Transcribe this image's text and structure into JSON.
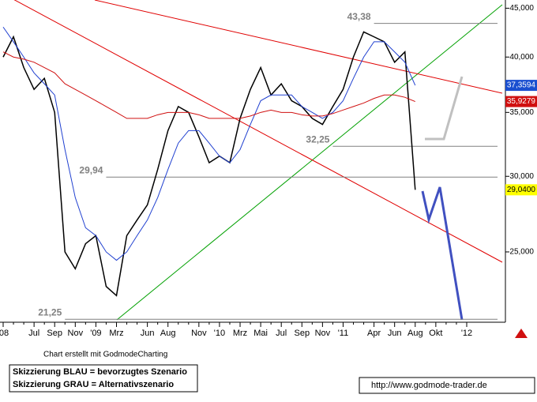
{
  "chart_data": {
    "type": "line",
    "log_scale": true,
    "categories": [
      "'08",
      null,
      null,
      "Jul",
      null,
      "Sep",
      null,
      "Nov",
      null,
      "'09",
      null,
      "Mrz",
      null,
      null,
      "Jun",
      null,
      "Aug",
      null,
      null,
      "Nov",
      null,
      "'10",
      null,
      "Mrz",
      null,
      "Mai",
      null,
      "Jul",
      null,
      "Sep",
      null,
      "Nov",
      null,
      "'11",
      null,
      null,
      "Apr",
      null,
      "Jun",
      null,
      "Aug",
      null,
      "Okt",
      null,
      null,
      "'12"
    ],
    "series": [
      {
        "color": "#000000",
        "values": [
          40000,
          42000,
          39000,
          37000,
          38000,
          35000,
          25000,
          24000,
          25500,
          26000,
          23000,
          22500,
          26000,
          27000,
          28000,
          30500,
          33500,
          35500,
          35000,
          33000,
          31000,
          31500,
          31000,
          34500,
          37000,
          39000,
          36500,
          37500,
          36000,
          35500,
          34500,
          34000,
          35500,
          37000,
          40000,
          42500,
          42000,
          41500,
          39500,
          40500,
          29040,
          null,
          null,
          null,
          null,
          null
        ]
      },
      {
        "color": "#2040d0",
        "values": [
          43000,
          41500,
          40000,
          38500,
          37500,
          36500,
          32000,
          28500,
          26500,
          26000,
          25000,
          24500,
          25000,
          26000,
          27000,
          28500,
          30500,
          32500,
          33500,
          33500,
          32500,
          31500,
          31000,
          32000,
          34000,
          36000,
          36500,
          36500,
          36500,
          35500,
          35000,
          34500,
          35000,
          36000,
          38000,
          40000,
          41500,
          41500,
          40500,
          39500,
          37359.4,
          null,
          null,
          null,
          null,
          null
        ]
      },
      {
        "color": "#d01010",
        "values": [
          40500,
          40000,
          39800,
          39500,
          39000,
          38500,
          37500,
          37000,
          36500,
          36000,
          35500,
          35000,
          34500,
          34500,
          34500,
          34800,
          35000,
          35000,
          35000,
          34800,
          34500,
          34500,
          34500,
          34500,
          34700,
          35000,
          35200,
          35000,
          35000,
          34800,
          34700,
          34700,
          34900,
          35200,
          35500,
          35800,
          36200,
          36500,
          36500,
          36300,
          35927.9,
          null,
          null,
          null,
          null,
          null
        ]
      }
    ],
    "ylim": [
      21100,
      45900
    ],
    "yticks": [
      {
        "value": 25000,
        "label": "25,000"
      },
      {
        "value": 30000,
        "label": "30,000"
      },
      {
        "value": 35000,
        "label": "35,000"
      },
      {
        "value": 40000,
        "label": "40,000"
      },
      {
        "value": 45000,
        "label": "45,000"
      }
    ],
    "levels": [
      {
        "value": 43380,
        "label": "43,38",
        "from": 36
      },
      {
        "value": 32250,
        "label": "32,25",
        "from": 32
      },
      {
        "value": 29940,
        "label": "29,94",
        "from": 10
      },
      {
        "value": 21250,
        "label": "21,25",
        "from": 6
      }
    ],
    "price_labels": [
      {
        "value": 37359.4,
        "label": "37,3594",
        "color": "#1a4fd0",
        "text_color": "#ffffff"
      },
      {
        "value": 35927.9,
        "label": "35,9279",
        "color": "#d01010",
        "text_color": "#ffffff"
      },
      {
        "value": 29040,
        "label": "29,0400",
        "color": "#ffff00",
        "text_color": "#000000"
      }
    ],
    "credit": "Chart erstellt mit GodmodeCharting",
    "notes": [
      "Skizzierung BLAU = bevorzugtes Szenario",
      "Skizzierung GRAU = Alternativszenario"
    ],
    "url": "http://www.godmode-trader.de"
  }
}
